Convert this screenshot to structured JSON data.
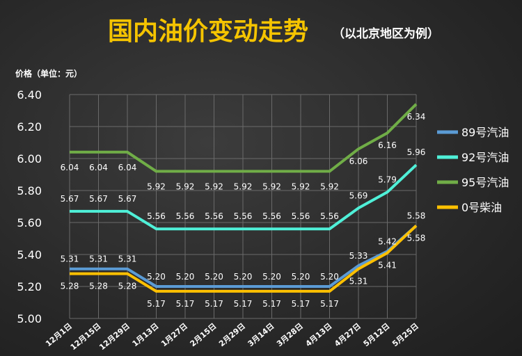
{
  "chart_data": {
    "type": "line",
    "title": "国内油价变动走势",
    "subtitle": "（以北京地区为例）",
    "ylabel": "价格（单位：元）",
    "xlabel": "",
    "ylim": [
      5.0,
      6.4
    ],
    "yticks": [
      "5.00",
      "5.20",
      "5.40",
      "5.60",
      "5.80",
      "6.00",
      "6.20",
      "6.40"
    ],
    "grid": true,
    "legend_position": "right",
    "categories": [
      "12月1日",
      "12月15日",
      "12月29日",
      "1月13日",
      "1月27日",
      "2月15日",
      "2月29日",
      "3月14日",
      "3月28日",
      "4月13日",
      "4月27日",
      "5月12日",
      "5月25日"
    ],
    "series": [
      {
        "name": "89号汽油",
        "color": "#5b9bd5",
        "values": [
          5.31,
          5.31,
          5.31,
          5.2,
          5.2,
          5.2,
          5.2,
          5.2,
          5.2,
          5.2,
          5.33,
          5.42,
          5.58
        ]
      },
      {
        "name": "92号汽油",
        "color": "#4ff0d8",
        "values": [
          5.67,
          5.67,
          5.67,
          5.56,
          5.56,
          5.56,
          5.56,
          5.56,
          5.56,
          5.56,
          5.69,
          5.79,
          5.96
        ]
      },
      {
        "name": "95号汽油",
        "color": "#70ad47",
        "values": [
          6.04,
          6.04,
          6.04,
          5.92,
          5.92,
          5.92,
          5.92,
          5.92,
          5.92,
          5.92,
          6.06,
          6.16,
          6.34
        ]
      },
      {
        "name": "0号柴油",
        "color": "#ffc000",
        "values": [
          5.28,
          5.28,
          5.28,
          5.17,
          5.17,
          5.17,
          5.17,
          5.17,
          5.17,
          5.17,
          5.31,
          5.41,
          5.58
        ]
      }
    ],
    "data_labels": {
      "89号汽油": [
        "5.31",
        "5.31",
        "5.31",
        "5.20",
        "5.20",
        "5.20",
        "5.20",
        "5.20",
        "5.20",
        "5.20",
        "5.33",
        "5.42",
        "5.58"
      ],
      "92号汽油": [
        "5.67",
        "5.67",
        "5.67",
        "5.56",
        "5.56",
        "5.56",
        "5.56",
        "5.56",
        "5.56",
        "5.56",
        "5.69",
        "5.79",
        "5.96"
      ],
      "95号汽油": [
        "6.04",
        "6.04",
        "6.04",
        "5.92",
        "5.92",
        "5.92",
        "5.92",
        "5.92",
        "5.92",
        "5.92",
        "6.06",
        "6.16",
        "6.34"
      ],
      "0号柴油": [
        "5.28",
        "5.28",
        "5.28",
        "5.17",
        "5.17",
        "5.17",
        "5.17",
        "5.17",
        "5.17",
        "5.17",
        "5.31",
        "5.41",
        "5.58"
      ]
    }
  },
  "colors": {
    "title": "#f5c400",
    "grid": "#6a6a6a",
    "text": "#ffffff"
  }
}
